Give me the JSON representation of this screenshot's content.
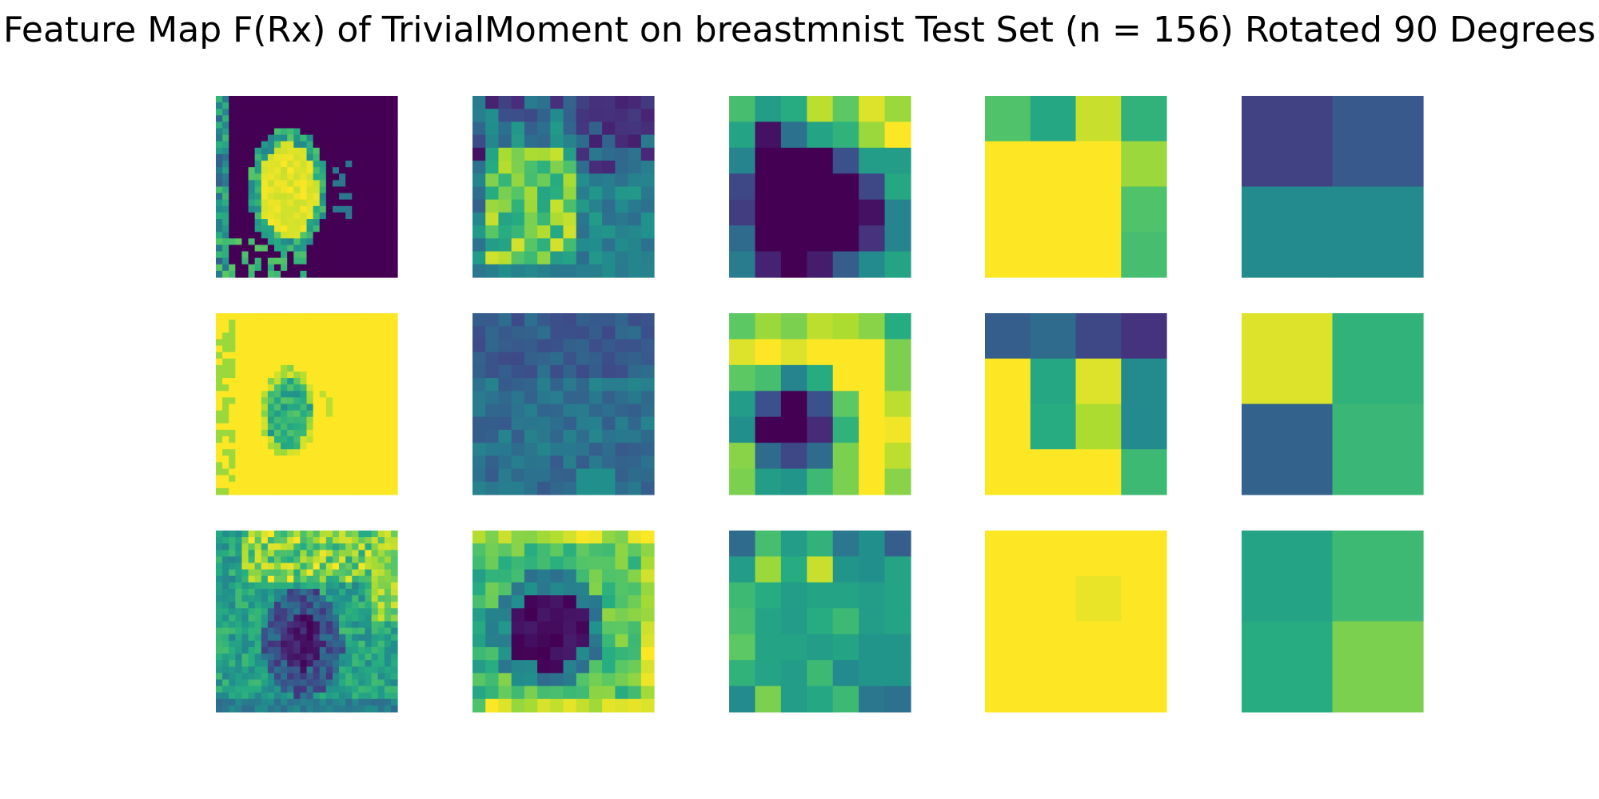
{
  "chart_data": {
    "type": "heatmap",
    "title": "Feature Map F(Rx) of TrivialMoment on breastmnist Test Set (n = 156) Rotated 90 Degrees",
    "colormap": "viridis",
    "value_range": [
      0,
      1
    ],
    "axes_visible": false,
    "layout": {
      "rows": 3,
      "cols": 5
    },
    "panels": [
      {
        "row": 0,
        "col": 0,
        "size": 28,
        "pattern": "blob-dark-bg",
        "seed": 11
      },
      {
        "row": 0,
        "col": 1,
        "size": 14,
        "pattern": "textured-mid-left-bright",
        "seed": 12
      },
      {
        "row": 0,
        "col": 2,
        "size": 7,
        "values": [
          [
            0.7,
            0.55,
            0.62,
            0.9,
            0.75,
            0.95,
            0.85
          ],
          [
            0.58,
            0.05,
            0.38,
            0.58,
            0.65,
            0.85,
            1.0
          ],
          [
            0.45,
            0.0,
            0.0,
            0.0,
            0.25,
            0.55,
            0.55
          ],
          [
            0.22,
            0.0,
            0.0,
            0.0,
            0.0,
            0.22,
            0.6
          ],
          [
            0.18,
            0.0,
            0.0,
            0.0,
            0.0,
            0.05,
            0.45
          ],
          [
            0.35,
            0.0,
            0.0,
            0.0,
            0.0,
            0.15,
            0.45
          ],
          [
            0.42,
            0.1,
            0.0,
            0.08,
            0.3,
            0.48,
            0.58
          ]
        ]
      },
      {
        "row": 0,
        "col": 3,
        "size": 4,
        "values": [
          [
            0.72,
            0.6,
            0.92,
            0.65
          ],
          [
            1.0,
            1.0,
            1.0,
            0.85
          ],
          [
            1.0,
            1.0,
            1.0,
            0.72
          ],
          [
            1.0,
            1.0,
            1.0,
            0.7
          ]
        ]
      },
      {
        "row": 0,
        "col": 4,
        "size": 2,
        "values": [
          [
            0.2,
            0.28
          ],
          [
            0.48,
            0.48
          ]
        ]
      },
      {
        "row": 1,
        "col": 0,
        "size": 28,
        "pattern": "blob-bright-bg",
        "seed": 21
      },
      {
        "row": 1,
        "col": 1,
        "size": 14,
        "pattern": "textured-uniform-mid",
        "seed": 22
      },
      {
        "row": 1,
        "col": 2,
        "size": 7,
        "values": [
          [
            0.75,
            0.85,
            0.8,
            0.9,
            0.88,
            0.82,
            0.62
          ],
          [
            0.95,
            1.0,
            0.95,
            1.0,
            1.0,
            1.0,
            0.8
          ],
          [
            0.75,
            0.7,
            0.45,
            0.62,
            1.0,
            1.0,
            0.8
          ],
          [
            0.55,
            0.25,
            0.0,
            0.25,
            0.75,
            1.0,
            0.9
          ],
          [
            0.5,
            0.0,
            0.0,
            0.12,
            0.65,
            1.0,
            0.98
          ],
          [
            0.82,
            0.35,
            0.22,
            0.35,
            0.8,
            1.0,
            0.9
          ],
          [
            0.8,
            0.55,
            0.52,
            0.68,
            0.8,
            1.0,
            0.82
          ]
        ]
      },
      {
        "row": 1,
        "col": 3,
        "size": 4,
        "values": [
          [
            0.3,
            0.35,
            0.22,
            0.15
          ],
          [
            1.0,
            0.6,
            0.95,
            0.48
          ],
          [
            1.0,
            0.62,
            0.88,
            0.48
          ],
          [
            1.0,
            1.0,
            1.0,
            0.68
          ]
        ]
      },
      {
        "row": 1,
        "col": 4,
        "size": 2,
        "values": [
          [
            0.95,
            0.65
          ],
          [
            0.32,
            0.67
          ]
        ]
      },
      {
        "row": 2,
        "col": 0,
        "size": 28,
        "pattern": "dark-spot-bright-top",
        "seed": 31
      },
      {
        "row": 2,
        "col": 1,
        "size": 14,
        "pattern": "dark-center-bright-border",
        "seed": 32
      },
      {
        "row": 2,
        "col": 2,
        "size": 7,
        "values": [
          [
            0.35,
            0.7,
            0.55,
            0.65,
            0.4,
            0.5,
            0.3
          ],
          [
            0.55,
            0.85,
            0.62,
            0.92,
            0.52,
            0.5,
            0.58
          ],
          [
            0.68,
            0.62,
            0.55,
            0.58,
            0.58,
            0.55,
            0.58
          ],
          [
            0.7,
            0.58,
            0.55,
            0.62,
            0.68,
            0.55,
            0.58
          ],
          [
            0.75,
            0.58,
            0.58,
            0.55,
            0.58,
            0.52,
            0.52
          ],
          [
            0.65,
            0.58,
            0.55,
            0.68,
            0.48,
            0.52,
            0.52
          ],
          [
            0.48,
            0.8,
            0.55,
            0.6,
            0.68,
            0.4,
            0.38
          ]
        ]
      },
      {
        "row": 2,
        "col": 3,
        "size": 4,
        "values": [
          [
            1.0,
            1.0,
            1.0,
            1.0
          ],
          [
            1.0,
            1.0,
            0.97,
            1.0
          ],
          [
            1.0,
            1.0,
            1.0,
            1.0
          ],
          [
            1.0,
            1.0,
            1.0,
            1.0
          ]
        ]
      },
      {
        "row": 2,
        "col": 4,
        "size": 2,
        "values": [
          [
            0.58,
            0.68
          ],
          [
            0.62,
            0.8
          ]
        ]
      }
    ]
  }
}
